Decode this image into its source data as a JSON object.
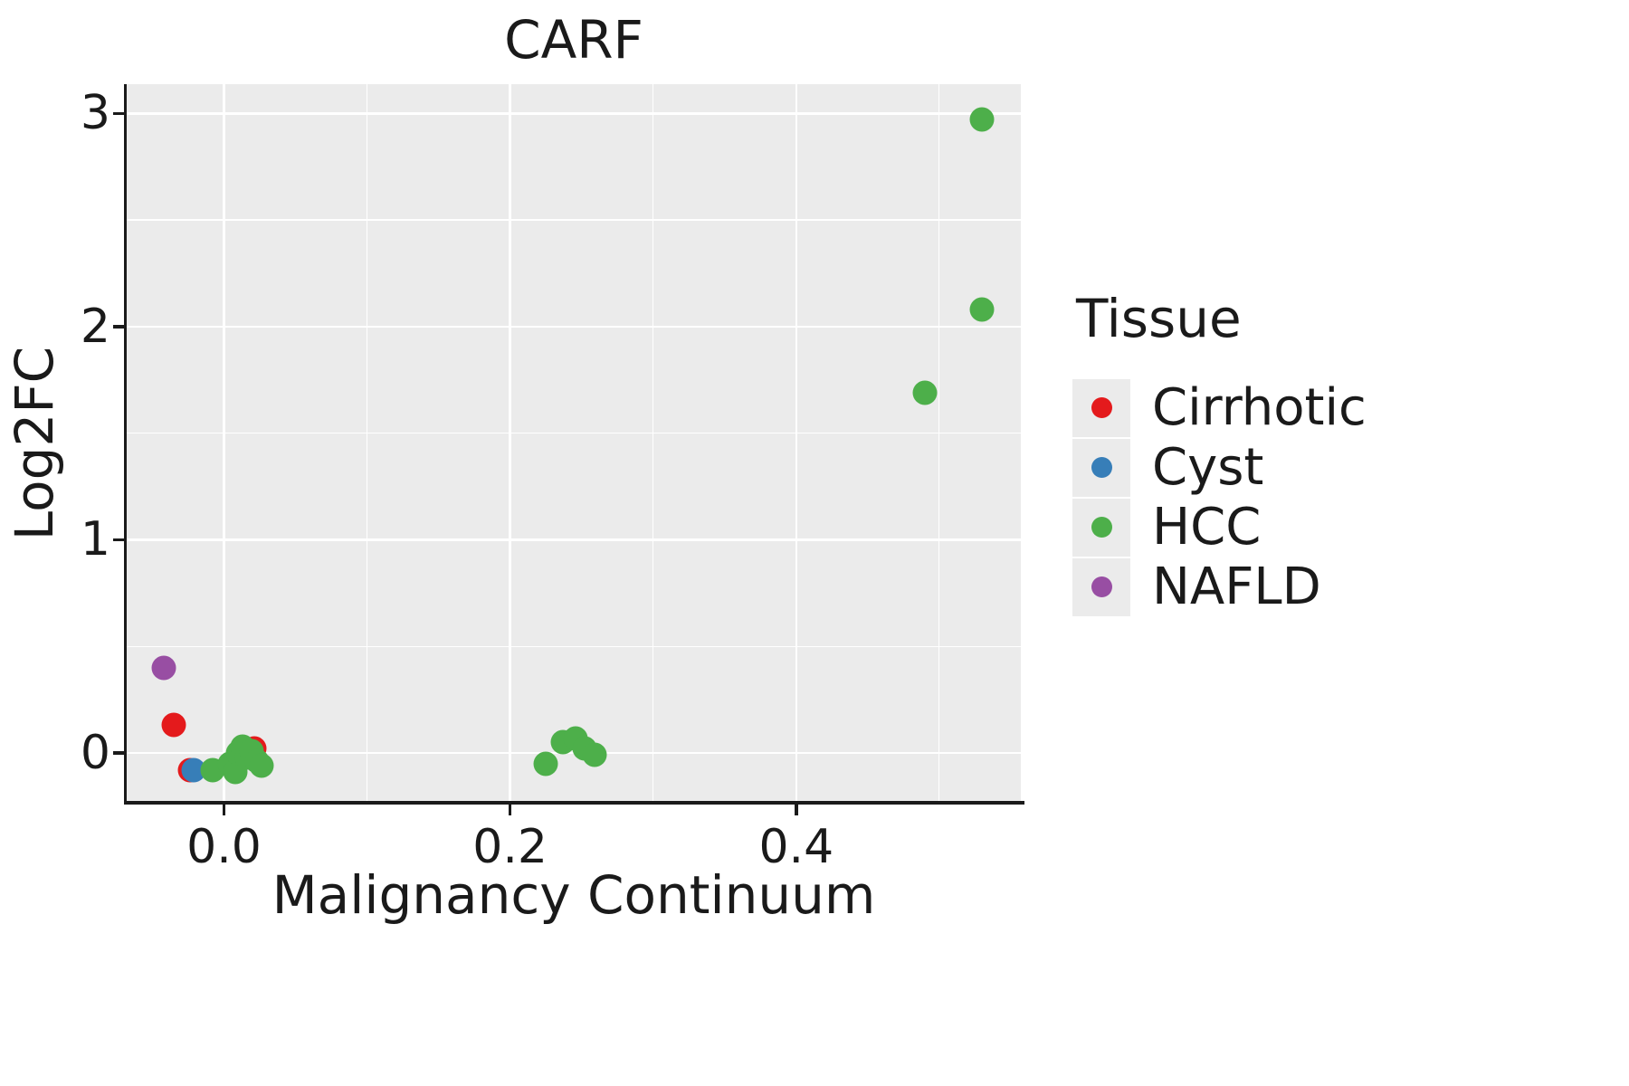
{
  "figure": {
    "background": "#ffffff",
    "text_color": "#1a1a1a"
  },
  "chart_data": {
    "type": "scatter",
    "title": "CARF",
    "xlabel": "Malignancy Continuum",
    "ylabel": "Log2FC",
    "xlim": [
      -0.068,
      0.557
    ],
    "ylim": [
      -0.225,
      3.137
    ],
    "x_ticks": [
      {
        "value": 0.0,
        "label": "0.0"
      },
      {
        "value": 0.2,
        "label": "0.2"
      },
      {
        "value": 0.4,
        "label": "0.4"
      }
    ],
    "y_ticks": [
      {
        "value": 0,
        "label": "0"
      },
      {
        "value": 1,
        "label": "1"
      },
      {
        "value": 2,
        "label": "2"
      },
      {
        "value": 3,
        "label": "3"
      }
    ],
    "grid": {
      "x_minor": [
        0.1,
        0.3,
        0.5
      ],
      "y_minor": [
        0.5,
        1.5,
        2.5
      ],
      "color": "#ffffff"
    },
    "panel_background": "#ebebeb",
    "point_size": 27,
    "series": [
      {
        "name": "Cirrhotic",
        "color": "#e41a1c",
        "points": [
          [
            -0.035,
            0.13
          ],
          [
            -0.024,
            -0.08
          ],
          [
            0.021,
            0.02
          ]
        ]
      },
      {
        "name": "Cyst",
        "color": "#377eb8",
        "points": [
          [
            -0.021,
            -0.08
          ]
        ]
      },
      {
        "name": "HCC",
        "color": "#4daf4a",
        "points": [
          [
            -0.008,
            -0.08
          ],
          [
            0.004,
            -0.05
          ],
          [
            0.008,
            -0.09
          ],
          [
            0.01,
            0.0
          ],
          [
            0.013,
            0.03
          ],
          [
            0.016,
            -0.02
          ],
          [
            0.019,
            0.01
          ],
          [
            0.023,
            -0.04
          ],
          [
            0.026,
            -0.06
          ],
          [
            0.225,
            -0.05
          ],
          [
            0.237,
            0.05
          ],
          [
            0.246,
            0.07
          ],
          [
            0.252,
            0.02
          ],
          [
            0.259,
            -0.01
          ],
          [
            0.49,
            1.69
          ],
          [
            0.53,
            2.08
          ],
          [
            0.53,
            2.97
          ]
        ]
      },
      {
        "name": "NAFLD",
        "color": "#984ea3",
        "points": [
          [
            -0.042,
            0.4
          ]
        ]
      }
    ],
    "legend": {
      "title": "Tissue",
      "position": "right",
      "entries": [
        "Cirrhotic",
        "Cyst",
        "HCC",
        "NAFLD"
      ]
    }
  }
}
